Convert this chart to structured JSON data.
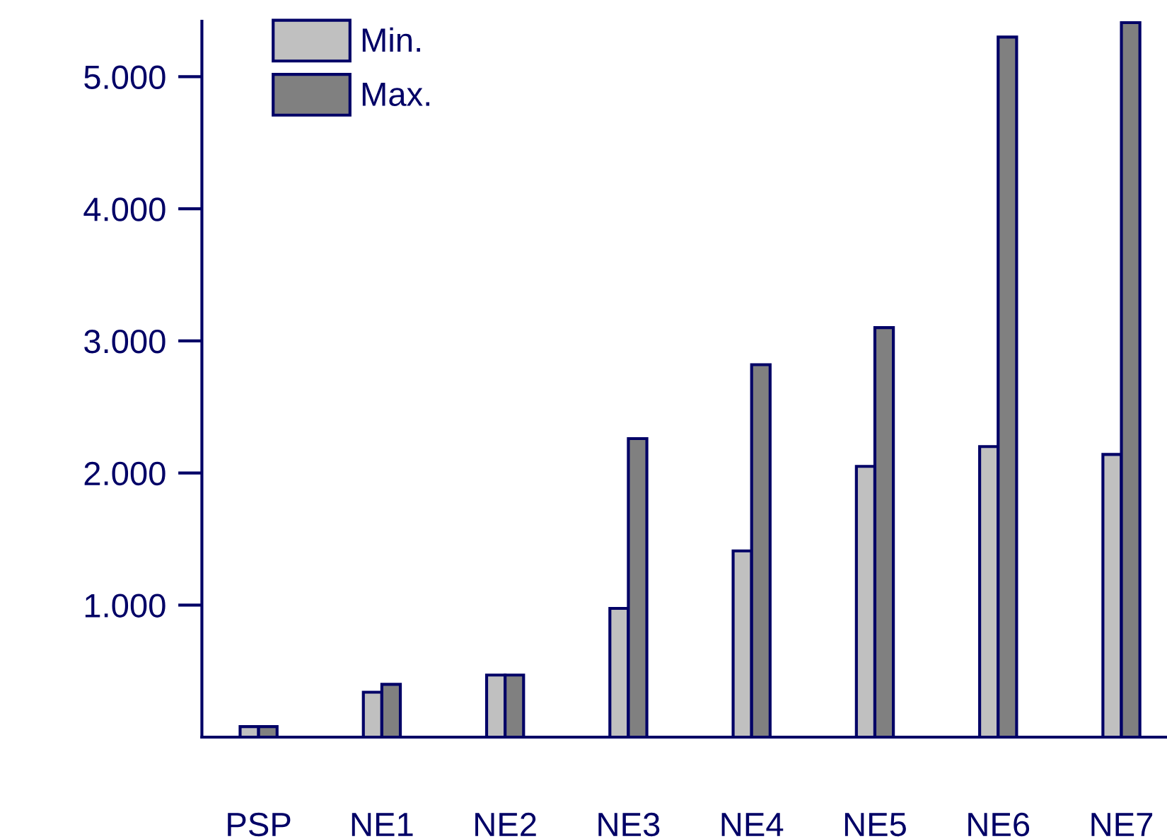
{
  "chart_data": {
    "type": "bar",
    "categories": [
      "PSP",
      "NE1",
      "NE2",
      "NE3",
      "NE4",
      "NE5",
      "NE6",
      "NE7"
    ],
    "series": [
      {
        "name": "Min.",
        "color": "#c0c0c0",
        "values": [
          80,
          340,
          470,
          975,
          1410,
          2050,
          2200,
          2140
        ]
      },
      {
        "name": "Max.",
        "color": "#808080",
        "values": [
          80,
          400,
          470,
          2260,
          2820,
          3100,
          5300,
          5410
        ]
      }
    ],
    "ylim": [
      0,
      5420
    ],
    "yticks": [
      {
        "value": 1000,
        "label": "1.000"
      },
      {
        "value": 2000,
        "label": "2.000"
      },
      {
        "value": 3000,
        "label": "3.000"
      },
      {
        "value": 4000,
        "label": "4.000"
      },
      {
        "value": 5000,
        "label": "5.000"
      }
    ],
    "grid": false,
    "legend": "top left"
  }
}
